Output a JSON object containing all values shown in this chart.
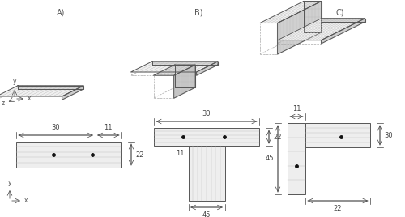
{
  "fig_width": 5.0,
  "fig_height": 2.68,
  "dpi": 100,
  "bg_color": "#ffffff",
  "line_color": "#555555",
  "dashed_color": "#aaaaaa",
  "face_top": "#f0f0f0",
  "face_front": "#e0e0e0",
  "face_side": "#d0d0d0",
  "hatch_color": "#bbbbbb",
  "electrode_color": "#111111",
  "dim_color": "#444444",
  "title_A": "A)",
  "title_B": "B)",
  "title_C": "C)",
  "label_x": "x",
  "label_y": "y",
  "label_z": "z"
}
